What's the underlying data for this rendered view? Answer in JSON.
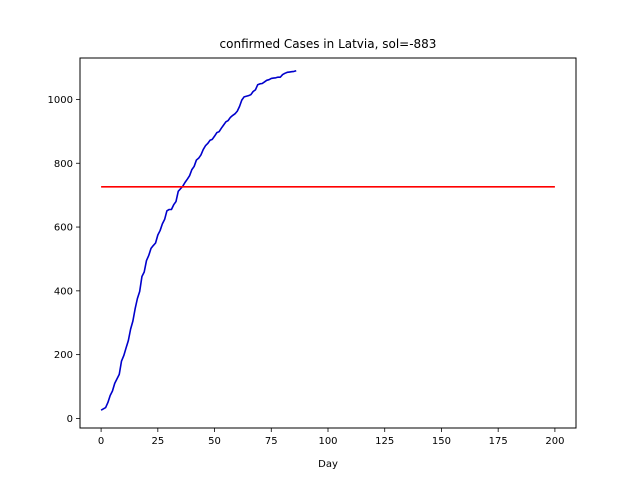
{
  "chart_data": {
    "type": "line",
    "title": "confirmed Cases in Latvia, sol=-883",
    "xlabel": "Day",
    "ylabel": "",
    "xlim": [
      -9.3,
      209.3
    ],
    "ylim": [
      -30,
      1130
    ],
    "xticks": [
      0,
      25,
      50,
      75,
      100,
      125,
      150,
      175,
      200
    ],
    "yticks": [
      0,
      200,
      400,
      600,
      800,
      1000
    ],
    "grid": false,
    "legend": "none",
    "series": [
      {
        "color": "#0000cc",
        "x": [
          0,
          2,
          3,
          4,
          5,
          6,
          7,
          8,
          9,
          10,
          11,
          12,
          13,
          14,
          15,
          16,
          17,
          18,
          19,
          20,
          21,
          22,
          23,
          24,
          25,
          26,
          27,
          28,
          29,
          30,
          31,
          32,
          33,
          34,
          35,
          36,
          37,
          38,
          39,
          40,
          41,
          42,
          43,
          44,
          45,
          46,
          47,
          48,
          49,
          50,
          51,
          52,
          53,
          54,
          55,
          56,
          57,
          58,
          59,
          60,
          61,
          62,
          63,
          64,
          65,
          66,
          67,
          68,
          69,
          70,
          71,
          72,
          73,
          74,
          75,
          76,
          77,
          78,
          79,
          80,
          81,
          82,
          83,
          84,
          85,
          86
        ],
        "y": [
          26,
          34,
          50,
          72,
          86,
          110,
          124,
          138,
          180,
          197,
          221,
          244,
          280,
          305,
          344,
          376,
          398,
          445,
          459,
          495,
          511,
          533,
          542,
          550,
          575,
          589,
          610,
          624,
          651,
          655,
          655,
          670,
          680,
          712,
          720,
          728,
          740,
          750,
          761,
          780,
          790,
          810,
          816,
          826,
          843,
          855,
          862,
          872,
          875,
          885,
          896,
          899,
          910,
          920,
          930,
          934,
          944,
          950,
          955,
          963,
          978,
          998,
          1008,
          1010,
          1012,
          1015,
          1025,
          1030,
          1046,
          1049,
          1050,
          1055,
          1060,
          1062,
          1066,
          1067,
          1068,
          1070,
          1070,
          1078,
          1082,
          1085,
          1086,
          1087,
          1088,
          1090
        ]
      },
      {
        "color": "#ff0000",
        "x": [
          0,
          200
        ],
        "y": [
          726,
          726
        ]
      }
    ]
  }
}
